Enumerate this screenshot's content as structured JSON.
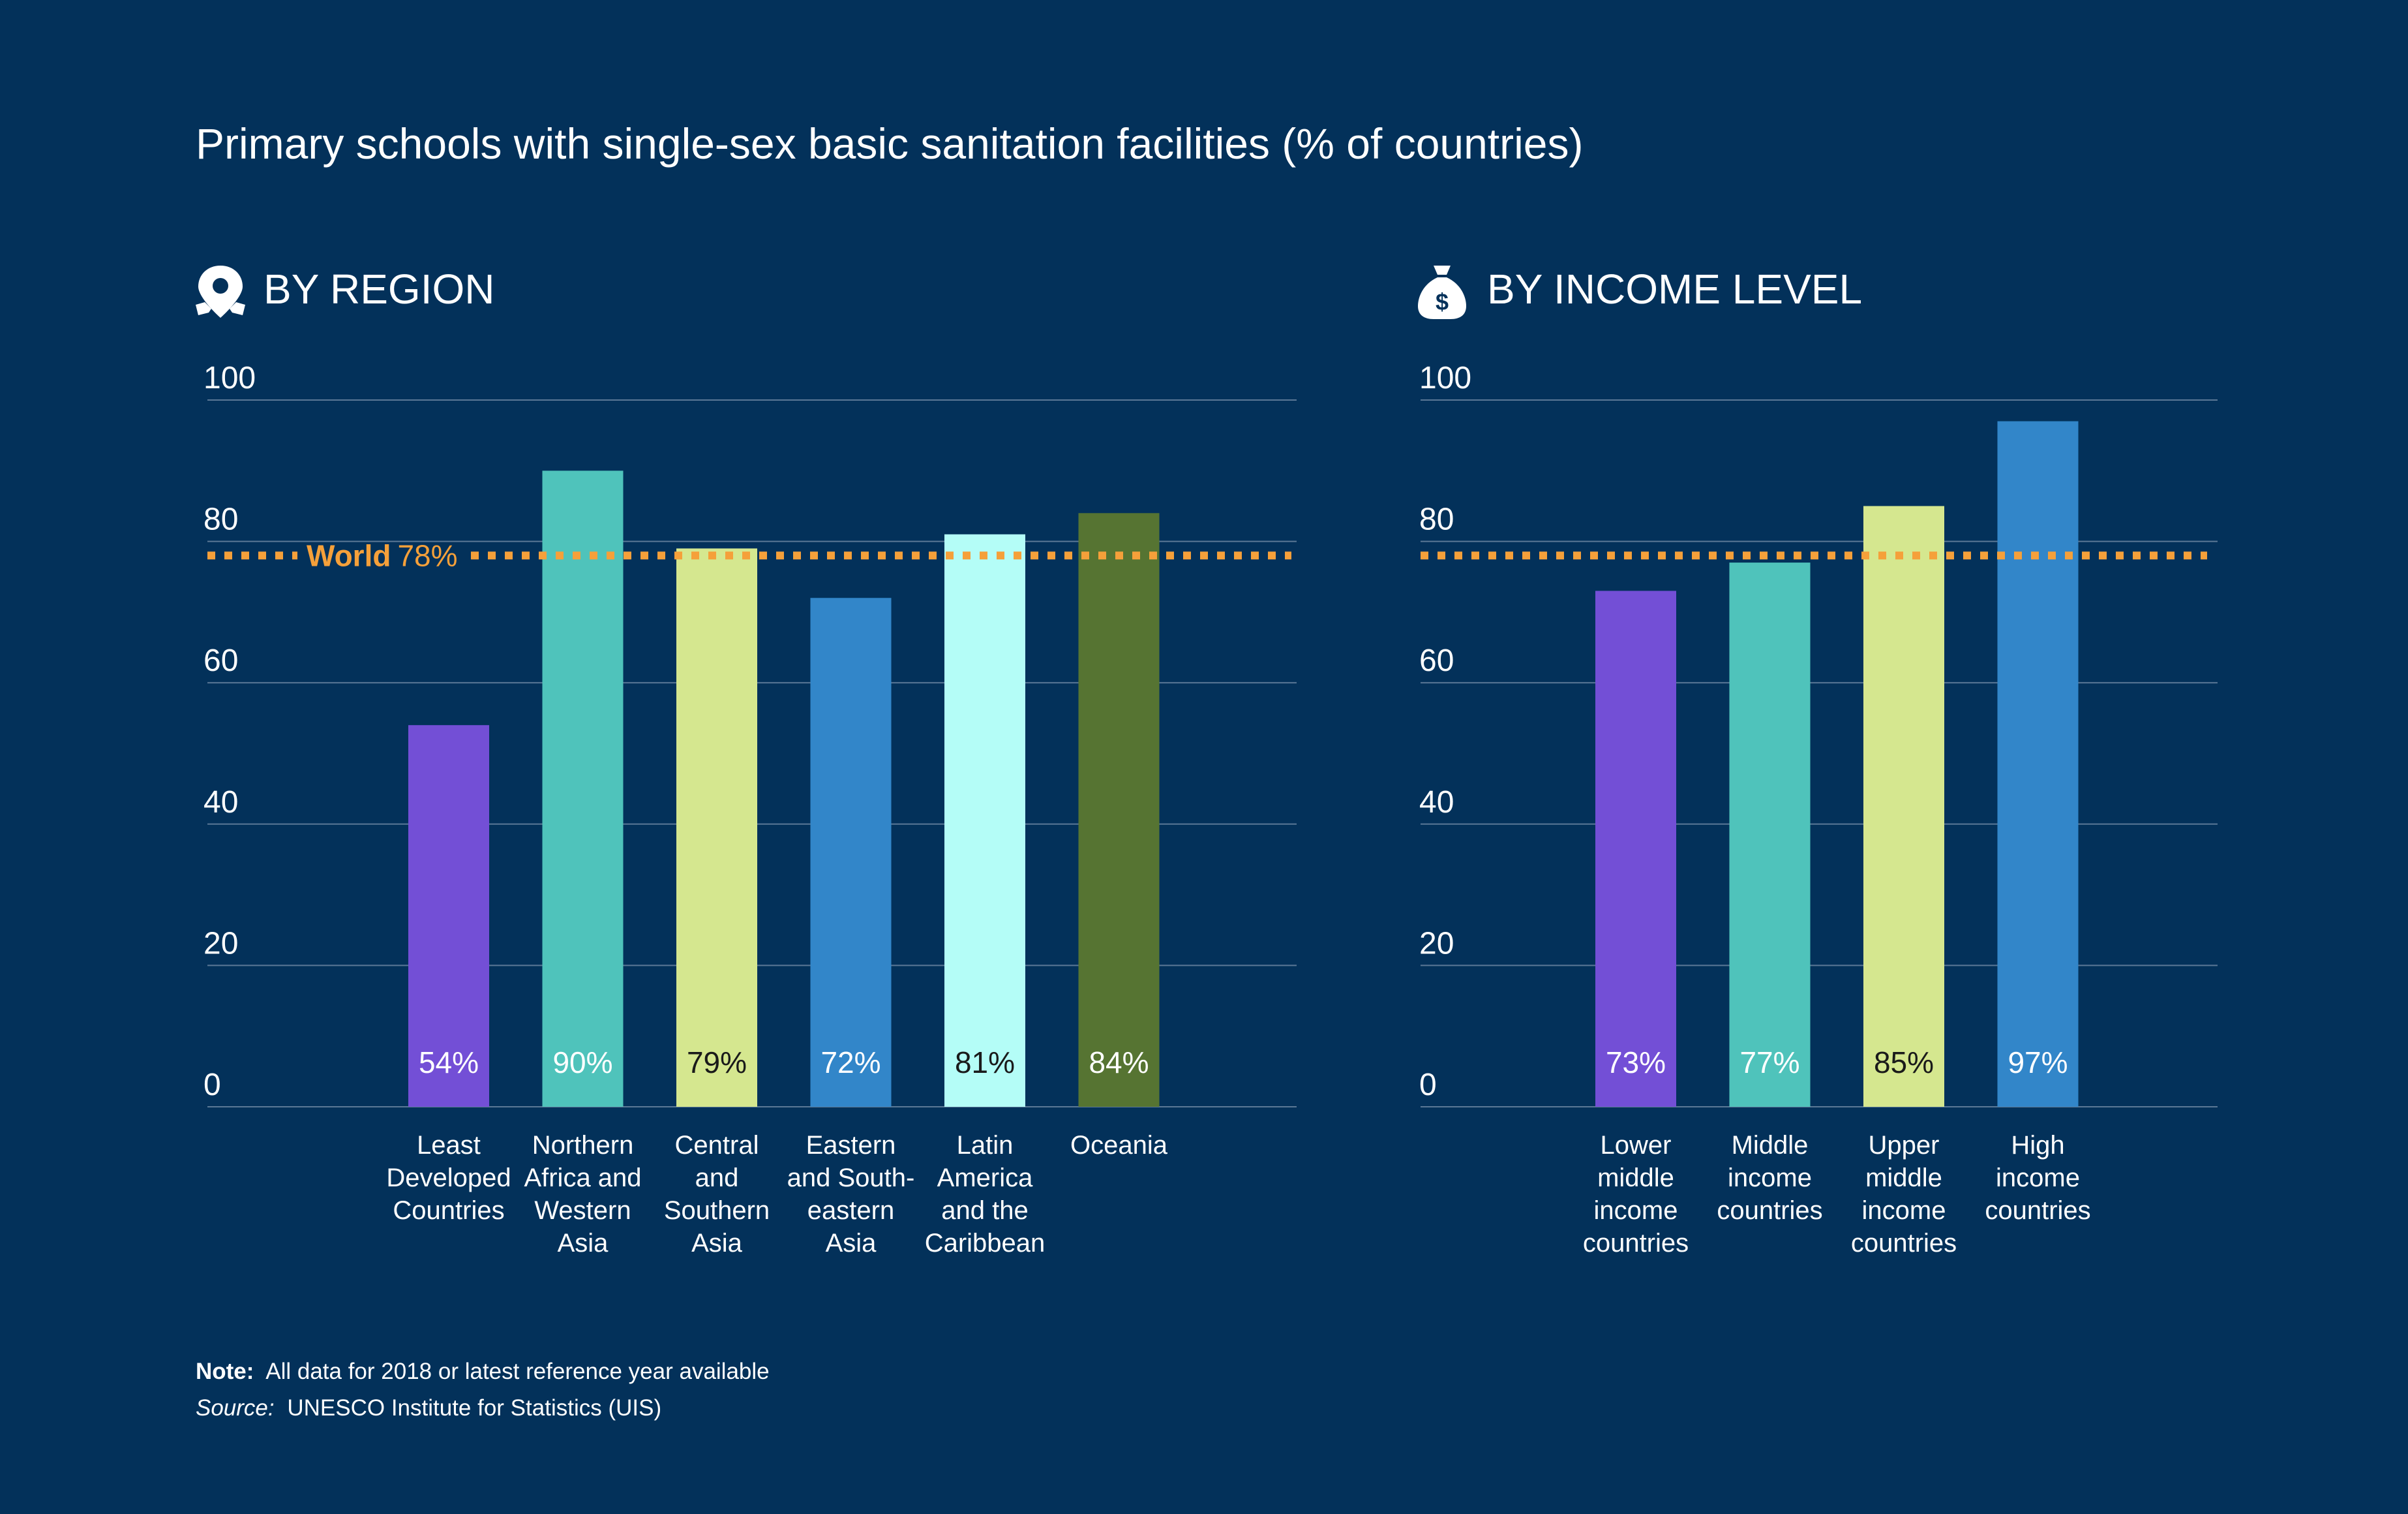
{
  "title": "Primary schools with single-sex basic sanitation facilities (% of countries)",
  "colors": {
    "background": "#03315a",
    "gridline": "#5b7896",
    "world_line": "#f5a03a",
    "text": "#ffffff"
  },
  "note": {
    "note_label": "Note:",
    "note_text": "All data for 2018 or latest reference year available",
    "source_label": "Source:",
    "source_text": "UNESCO Institute for Statistics (UIS)"
  },
  "chart_data": [
    {
      "type": "bar",
      "heading": "BY REGION",
      "icon": "map-pin-icon",
      "yticks": [
        0,
        20,
        40,
        60,
        80,
        100
      ],
      "ylim": [
        0,
        100
      ],
      "grid": true,
      "categories": [
        [
          "Least",
          "Developed",
          "Countries"
        ],
        [
          "Northern",
          "Africa and",
          "Western",
          "Asia"
        ],
        [
          "Central",
          "and",
          "Southern",
          "Asia"
        ],
        [
          "Eastern",
          "and South-",
          "eastern",
          "Asia"
        ],
        [
          "Latin",
          "America",
          "and the",
          "Caribbean"
        ],
        [
          "Oceania"
        ]
      ],
      "values": [
        54,
        90,
        79,
        72,
        81,
        84
      ],
      "value_labels": [
        "54%",
        "90%",
        "79%",
        "72%",
        "81%",
        "84%"
      ],
      "colors": [
        "#734fd6",
        "#4fc3bb",
        "#d5e78f",
        "#3286c9",
        "#b4fdf7",
        "#567432"
      ],
      "label_colors": [
        "#ffffff",
        "#ffffff",
        "#1a1a1a",
        "#ffffff",
        "#1a1a1a",
        "#ffffff"
      ],
      "reference": {
        "value": 78,
        "label_bold": "World",
        "label_value": "78%"
      }
    },
    {
      "type": "bar",
      "heading": "BY INCOME LEVEL",
      "icon": "money-bag-icon",
      "yticks": [
        0,
        20,
        40,
        60,
        80,
        100
      ],
      "ylim": [
        0,
        100
      ],
      "grid": true,
      "categories": [
        [
          "Lower",
          "middle",
          "income",
          "countries"
        ],
        [
          "Middle",
          "income",
          "countries"
        ],
        [
          "Upper",
          "middle",
          "income",
          "countries"
        ],
        [
          "High",
          "income",
          "countries"
        ]
      ],
      "values": [
        73,
        77,
        85,
        97
      ],
      "value_labels": [
        "73%",
        "77%",
        "85%",
        "97%"
      ],
      "colors": [
        "#734fd6",
        "#4fc3bb",
        "#d5e78f",
        "#3286c9"
      ],
      "label_colors": [
        "#ffffff",
        "#ffffff",
        "#1a1a1a",
        "#ffffff"
      ],
      "reference": {
        "value": 78
      }
    }
  ]
}
